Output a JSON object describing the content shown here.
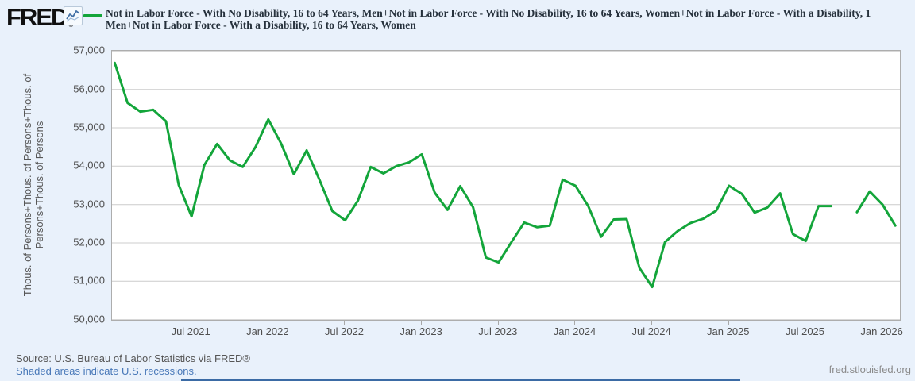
{
  "header": {
    "logo_text": "FRED",
    "logo_reg": "®",
    "legend_color": "#13a53a",
    "title_lines": [
      "Not in Labor Force - With No Disability, 16 to 64 Years, Men+Not in Labor Force - With No Disability, 16 to 64 Years, Women+Not in Labor Force - With a Disability, 1",
      "Men+Not in Labor Force - With a Disability, 16 to 64 Years, Women"
    ]
  },
  "footer": {
    "source_text": "Source: U.S. Bureau of Labor Statistics via FRED®",
    "recession_note": "Shaded areas indicate U.S. recessions.",
    "site_link": "fred.stlouisfed.org"
  },
  "chart_data": {
    "type": "line",
    "title": "Not in Labor Force - With No Disability, 16 to 64 Years, Men+Not in Labor Force - With No Disability, 16 to 64 Years, Women+Not in Labor Force - With a Disability, 16 to 64 Years, Men+Not in Labor Force - With a Disability, 16 to 64 Years, Women",
    "ylabel_lines": [
      "Thous. of Persons+Thous. of Persons+Thous. of",
      "Persons+Thous. of Persons"
    ],
    "ylim": [
      50000,
      57000
    ],
    "y_tick_step": 1000,
    "y_tick_labels": [
      "57,000",
      "56,000",
      "55,000",
      "54,000",
      "53,000",
      "52,000",
      "51,000",
      "50,000"
    ],
    "x_tick_labels": [
      "Jul 2021",
      "Jan 2022",
      "Jul 2022",
      "Jan 2023",
      "Jul 2023",
      "Jan 2024",
      "Jul 2024",
      "Jan 2025",
      "Jul 2025",
      "Jan 2026"
    ],
    "x_tick_indices": [
      6,
      12,
      18,
      24,
      30,
      36,
      42,
      48,
      54,
      60
    ],
    "grid": "horizontal",
    "line_color": "#13a53a",
    "gridline_color": "#cccccc",
    "series": [
      {
        "name": "Not in Labor Force combined (Men+Women, With No Disability + With a Disability), 16 to 64 Years",
        "x": [
          "2021-01",
          "2021-02",
          "2021-03",
          "2021-04",
          "2021-05",
          "2021-06",
          "2021-07",
          "2021-08",
          "2021-09",
          "2021-10",
          "2021-11",
          "2021-12",
          "2022-01",
          "2022-02",
          "2022-03",
          "2022-04",
          "2022-05",
          "2022-06",
          "2022-07",
          "2022-08",
          "2022-09",
          "2022-10",
          "2022-11",
          "2022-12",
          "2023-01",
          "2023-02",
          "2023-03",
          "2023-04",
          "2023-05",
          "2023-06",
          "2023-07",
          "2023-08",
          "2023-09",
          "2023-10",
          "2023-11",
          "2023-12",
          "2024-01",
          "2024-02",
          "2024-03",
          "2024-04",
          "2024-05",
          "2024-06",
          "2024-07",
          "2024-08",
          "2024-09",
          "2024-10",
          "2024-11",
          "2024-12",
          "2025-01",
          "2025-02",
          "2025-03",
          "2025-04",
          "2025-05",
          "2025-06",
          "2025-07",
          "2025-08",
          "2025-09",
          "2025-10",
          "2025-11",
          "2025-12",
          "2026-01",
          "2026-02"
        ],
        "values": [
          56690,
          55650,
          55420,
          55470,
          55170,
          53510,
          52690,
          54030,
          54580,
          54150,
          53980,
          54500,
          55220,
          54590,
          53790,
          54410,
          53640,
          52830,
          52590,
          53100,
          53980,
          53810,
          54000,
          54100,
          54310,
          53310,
          52860,
          53480,
          52930,
          51620,
          51490,
          52020,
          52530,
          52410,
          52450,
          53650,
          53490,
          52960,
          52160,
          52610,
          52620,
          51350,
          50850,
          52020,
          52310,
          52520,
          52630,
          52840,
          53490,
          53280,
          52790,
          52920,
          53290,
          52230,
          52050,
          52960,
          52960,
          null,
          52800,
          53340,
          53000,
          52450
        ]
      }
    ]
  }
}
